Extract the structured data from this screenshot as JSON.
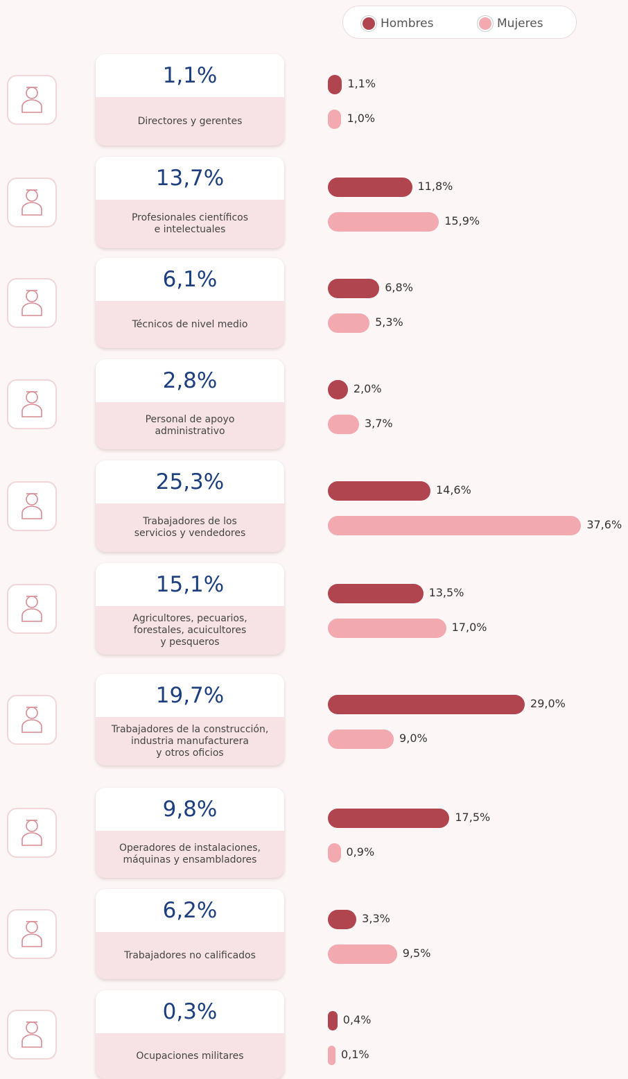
{
  "chart_data": {
    "type": "bar",
    "categories": [
      "Directores y gerentes",
      "Profesionales científicos\ne intelectuales",
      "Técnicos de nivel medio",
      "Personal de apoyo\nadministrativo",
      "Trabajadores de los\nservicios y vendedores",
      "Agricultores, pecuarios,\nforestales, acuicultores\ny pesqueros",
      "Trabajadores de la construcción,\nindustria manufacturera\ny otros oficios",
      "Operadores de  instalaciones,\nmáquinas y ensambladores",
      "Trabajadores no calificados",
      "Ocupaciones militares"
    ],
    "totals": {
      "values": [
        1.1,
        13.7,
        6.1,
        2.8,
        25.3,
        15.1,
        19.7,
        9.8,
        6.2,
        0.3
      ],
      "value_labels": [
        "1,1%",
        "13,7%",
        "6,1%",
        "2,8%",
        "25,3%",
        "15,1%",
        "19,7%",
        "9,8%",
        "6,2%",
        "0,3%"
      ]
    },
    "series": [
      {
        "name": "Hombres",
        "color": "#b0444f",
        "values": [
          1.1,
          11.8,
          6.8,
          2.0,
          14.6,
          13.5,
          29.0,
          17.5,
          3.3,
          0.4
        ],
        "value_labels": [
          "1,1%",
          "11,8%",
          "6,8%",
          "2,0%",
          "14,6%",
          "13,5%",
          "29,0%",
          "17,5%",
          "3,3%",
          "0,4%"
        ]
      },
      {
        "name": "Mujeres",
        "color": "#f2a9b0",
        "values": [
          1.0,
          15.9,
          5.3,
          3.7,
          37.6,
          17.0,
          9.0,
          0.9,
          9.5,
          0.1
        ],
        "value_labels": [
          "1,0%",
          "15,9%",
          "5,3%",
          "3,7%",
          "37,6%",
          "17,0%",
          "9,0%",
          "0,9%",
          "9,5%",
          "0,1%"
        ]
      }
    ]
  }
}
